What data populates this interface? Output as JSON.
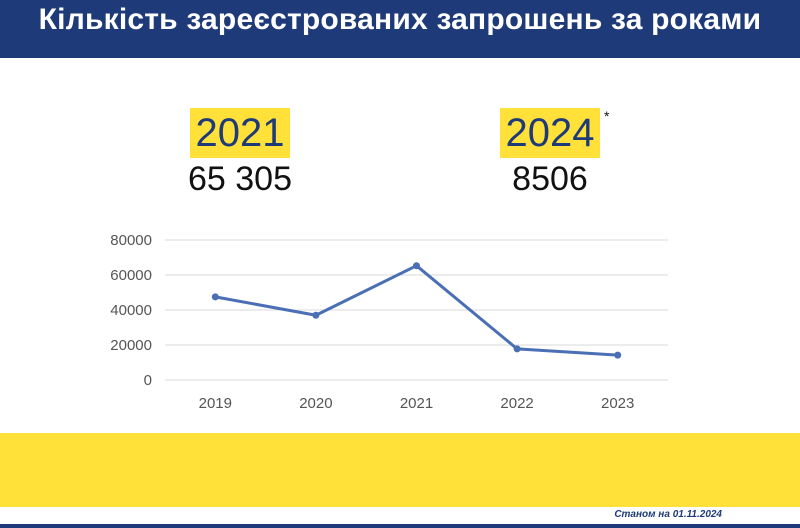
{
  "header": {
    "title": "Кількість зареєстрованих запрошень за роками"
  },
  "highlights": [
    {
      "year": "2021",
      "value": "65 305",
      "mark": ""
    },
    {
      "year": "2024",
      "value": "8506",
      "mark": "*"
    }
  ],
  "footer": {
    "note": "Станом на 01.11.2024"
  },
  "colors": {
    "header_bg": "#1e3a78",
    "accent_yellow": "#ffe13a",
    "line": "#4a6fb5"
  },
  "chart_data": {
    "type": "line",
    "categories": [
      "2019",
      "2020",
      "2021",
      "2022",
      "2023"
    ],
    "series": [
      {
        "values": [
          47500,
          37000,
          65305,
          17800,
          14200
        ]
      }
    ],
    "ylim": [
      0,
      80000
    ],
    "yticks": [
      0,
      20000,
      40000,
      60000,
      80000
    ],
    "ytick_labels": [
      "0",
      "20000",
      "40000",
      "60000",
      "80000"
    ],
    "grid": "horizontal",
    "legend": "none",
    "title": "",
    "xlabel": "",
    "ylabel": ""
  }
}
